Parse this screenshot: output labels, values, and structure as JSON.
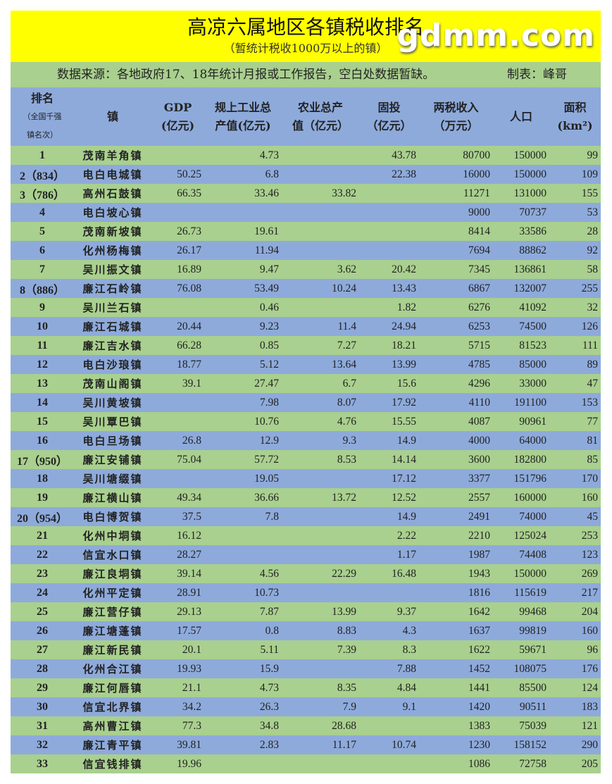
{
  "title": "高凉六属地区各镇税收排名",
  "subtitle": "（暂统计税收1000万以上的镇）",
  "source": "数据来源：各地政府17、18年统计月报或工作报告，空白处数据暂缺。",
  "author": "制表：峰哥",
  "headers": {
    "rank": "排名",
    "rank_note1": "（全国千强",
    "rank_note2": "镇名次）",
    "town": "镇",
    "gdp1": "GDP",
    "gdp2": "(亿元)",
    "ind1": "规上工业总",
    "ind2": "产值(亿元)",
    "agr1": "农业总产",
    "agr2": "值（亿元）",
    "inv1": "固投",
    "inv2": "（亿元）",
    "tax1": "两税收入",
    "tax2": "（万元）",
    "pop": "人口",
    "area1": "面积",
    "area2": "(km²)"
  },
  "colors": {
    "title_bg": "#ffff00",
    "green_row": "#a9d08e",
    "blue_row": "#8eaadb"
  },
  "watermark": "gdmm.com",
  "rows": [
    [
      "1",
      "茂南羊角镇",
      "",
      "4.73",
      "",
      "43.78",
      "80700",
      "150000",
      "99"
    ],
    [
      "2（834）",
      "电白电城镇",
      "50.25",
      "6.8",
      "",
      "22.38",
      "16000",
      "150000",
      "109"
    ],
    [
      "3（786）",
      "高州石鼓镇",
      "66.35",
      "33.46",
      "33.82",
      "",
      "11271",
      "131000",
      "155"
    ],
    [
      "4",
      "电白坡心镇",
      "",
      "",
      "",
      "",
      "9000",
      "70737",
      "53"
    ],
    [
      "5",
      "茂南新坡镇",
      "26.73",
      "19.61",
      "",
      "",
      "8414",
      "33586",
      "28"
    ],
    [
      "6",
      "化州杨梅镇",
      "26.17",
      "11.94",
      "",
      "",
      "7694",
      "88862",
      "92"
    ],
    [
      "7",
      "吴川振文镇",
      "16.89",
      "9.47",
      "3.62",
      "20.42",
      "7345",
      "136861",
      "58"
    ],
    [
      "8（886）",
      "廉江石岭镇",
      "76.08",
      "53.49",
      "10.24",
      "13.43",
      "6867",
      "132007",
      "255"
    ],
    [
      "9",
      "吴川兰石镇",
      "",
      "0.46",
      "",
      "1.82",
      "6276",
      "41092",
      "32"
    ],
    [
      "10",
      "廉江石城镇",
      "20.44",
      "9.23",
      "11.4",
      "24.94",
      "6253",
      "74500",
      "126"
    ],
    [
      "11",
      "廉江吉水镇",
      "66.28",
      "0.85",
      "7.27",
      "18.21",
      "5715",
      "81523",
      "111"
    ],
    [
      "12",
      "电白沙琅镇",
      "18.77",
      "5.12",
      "13.64",
      "13.99",
      "4785",
      "85000",
      "89"
    ],
    [
      "13",
      "茂南山阁镇",
      "39.1",
      "27.47",
      "6.7",
      "15.6",
      "4296",
      "33000",
      "47"
    ],
    [
      "14",
      "吴川黄坡镇",
      "",
      "7.98",
      "8.07",
      "17.92",
      "4110",
      "191100",
      "153"
    ],
    [
      "15",
      "吴川覃巴镇",
      "",
      "10.76",
      "4.76",
      "15.55",
      "4087",
      "90961",
      "77"
    ],
    [
      "16",
      "电白旦场镇",
      "26.8",
      "12.9",
      "9.3",
      "14.9",
      "4000",
      "64000",
      "81"
    ],
    [
      "17（950）",
      "廉江安铺镇",
      "75.04",
      "57.72",
      "8.53",
      "14.14",
      "3600",
      "182800",
      "85"
    ],
    [
      "18",
      "吴川塘缀镇",
      "",
      "19.05",
      "",
      "17.12",
      "3377",
      "151796",
      "170"
    ],
    [
      "19",
      "廉江横山镇",
      "49.34",
      "36.66",
      "13.72",
      "12.52",
      "2557",
      "160000",
      "160"
    ],
    [
      "20（954）",
      "电白博贺镇",
      "37.5",
      "7.8",
      "",
      "14.9",
      "2491",
      "74000",
      "45"
    ],
    [
      "21",
      "化州中垌镇",
      "16.12",
      "",
      "",
      "2.22",
      "2210",
      "125024",
      "253"
    ],
    [
      "22",
      "信宜水口镇",
      "28.27",
      "",
      "",
      "1.17",
      "1987",
      "74408",
      "123"
    ],
    [
      "23",
      "廉江良垌镇",
      "39.14",
      "4.56",
      "22.29",
      "16.48",
      "1943",
      "150000",
      "269"
    ],
    [
      "24",
      "化州平定镇",
      "28.91",
      "10.73",
      "",
      "",
      "1816",
      "115619",
      "217"
    ],
    [
      "25",
      "廉江营仔镇",
      "29.13",
      "7.87",
      "13.99",
      "9.37",
      "1642",
      "99468",
      "204"
    ],
    [
      "26",
      "廉江塘蓬镇",
      "17.57",
      "0.8",
      "8.83",
      "4.3",
      "1637",
      "99819",
      "160"
    ],
    [
      "27",
      "廉江新民镇",
      "20.1",
      "5.11",
      "7.39",
      "8.3",
      "1622",
      "59671",
      "96"
    ],
    [
      "28",
      "化州合江镇",
      "19.93",
      "15.9",
      "",
      "7.88",
      "1452",
      "108075",
      "176"
    ],
    [
      "29",
      "廉江何唇镇",
      "21.1",
      "4.73",
      "8.35",
      "4.84",
      "1441",
      "85500",
      "124"
    ],
    [
      "30",
      "信宜北界镇",
      "34.2",
      "26.3",
      "7.9",
      "9.1",
      "1420",
      "90511",
      "183"
    ],
    [
      "31",
      "高州曹江镇",
      "77.3",
      "34.8",
      "28.68",
      "",
      "1383",
      "75039",
      "121"
    ],
    [
      "32",
      "廉江青平镇",
      "39.81",
      "2.83",
      "11.17",
      "10.74",
      "1230",
      "158152",
      "290"
    ],
    [
      "33",
      "信宜钱排镇",
      "19.96",
      "",
      "",
      "",
      "1086",
      "72758",
      "205"
    ]
  ]
}
